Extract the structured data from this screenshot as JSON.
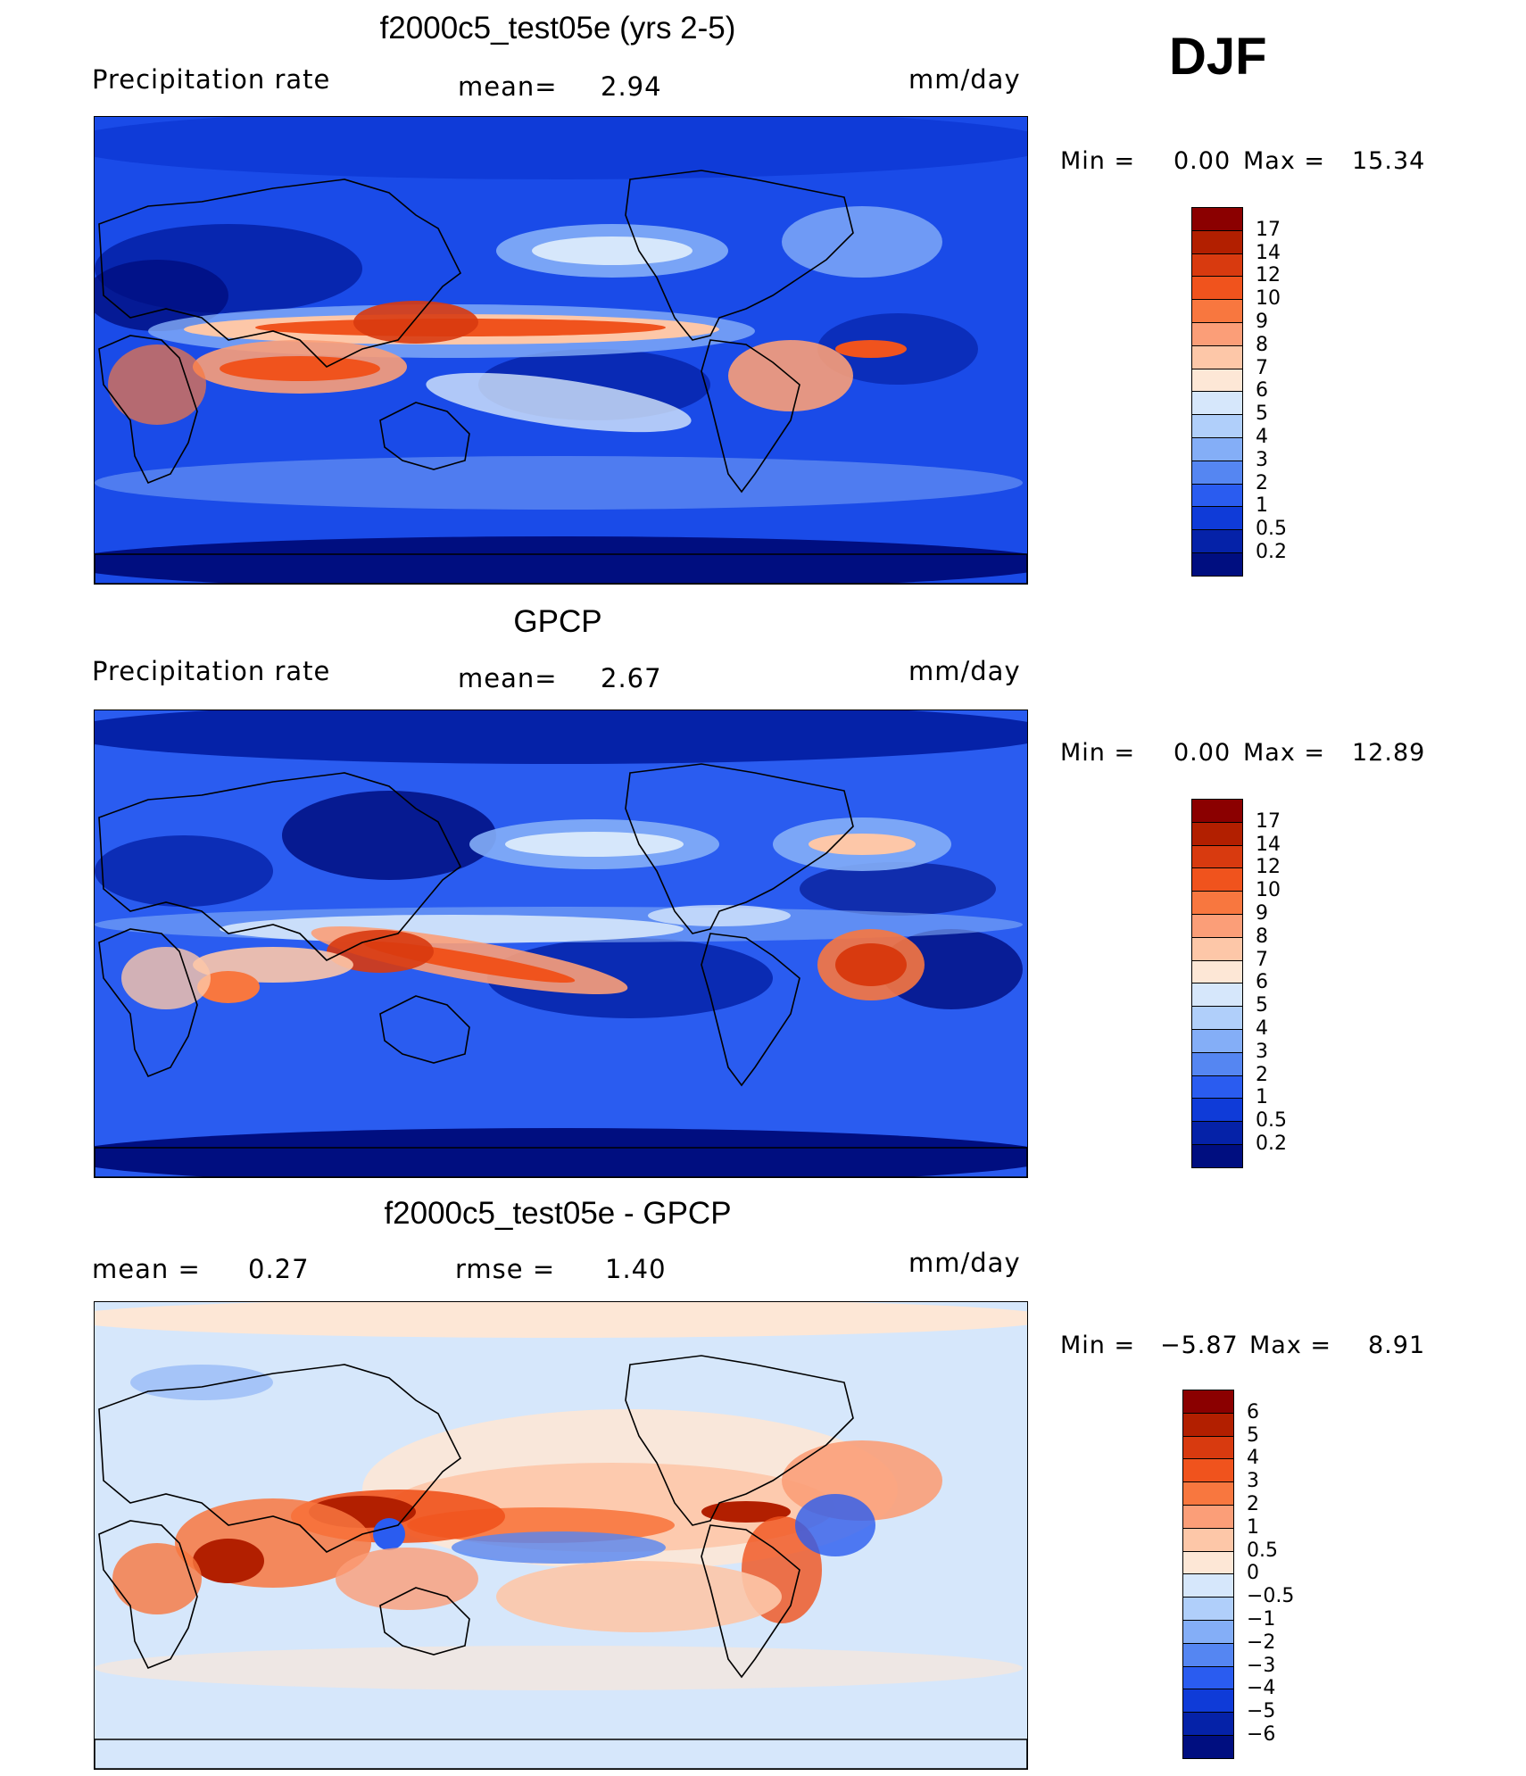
{
  "season": "DJF",
  "panels": [
    {
      "id": "model",
      "title": "f2000c5_test05e (yrs 2-5)",
      "left_label": "Precipitation rate",
      "mid_label": "mean=",
      "mid_value": "2.94",
      "units": "mm/day",
      "min_label": "Min =",
      "min_value": "0.00",
      "max_label": "Max =",
      "max_value": "15.34"
    },
    {
      "id": "obs",
      "title": "GPCP",
      "left_label": "Precipitation rate",
      "mid_label": "mean=",
      "mid_value": "2.67",
      "units": "mm/day",
      "min_label": "Min =",
      "min_value": "0.00",
      "max_label": "Max =",
      "max_value": "12.89"
    },
    {
      "id": "diff",
      "title": "f2000c5_test05e - GPCP",
      "left_label": "mean =",
      "left_value": "0.27",
      "mid_label": "rmse =",
      "mid_value": "1.40",
      "units": "mm/day",
      "min_label": "Min =",
      "min_value": "−5.87",
      "max_label": "Max =",
      "max_value": "8.91"
    }
  ],
  "chart_data": [
    {
      "type": "heatmap",
      "title": "f2000c5_test05e (yrs 2-5)",
      "variable": "Precipitation rate",
      "units": "mm/day",
      "mean": 2.94,
      "min": 0.0,
      "max": 15.34,
      "colorbar_levels": [
        "17",
        "14",
        "12",
        "10",
        "9",
        "8",
        "7",
        "6",
        "5",
        "4",
        "3",
        "2",
        "1",
        "0.5",
        "0.2"
      ],
      "colorbar_colors": [
        "#8b0000",
        "#b21f00",
        "#d83a0f",
        "#f0531d",
        "#f8773f",
        "#fb9e78",
        "#fdc7a8",
        "#fde7d6",
        "#d6e7fb",
        "#b0cffa",
        "#84aef7",
        "#5586f2",
        "#2a5cf0",
        "#0f3bd8",
        "#0522a8",
        "#000e80"
      ]
    },
    {
      "type": "heatmap",
      "title": "GPCP",
      "variable": "Precipitation rate",
      "units": "mm/day",
      "mean": 2.67,
      "min": 0.0,
      "max": 12.89,
      "colorbar_levels": [
        "17",
        "14",
        "12",
        "10",
        "9",
        "8",
        "7",
        "6",
        "5",
        "4",
        "3",
        "2",
        "1",
        "0.5",
        "0.2"
      ],
      "colorbar_colors": [
        "#8b0000",
        "#b21f00",
        "#d83a0f",
        "#f0531d",
        "#f8773f",
        "#fb9e78",
        "#fdc7a8",
        "#fde7d6",
        "#d6e7fb",
        "#b0cffa",
        "#84aef7",
        "#5586f2",
        "#2a5cf0",
        "#0f3bd8",
        "#0522a8",
        "#000e80"
      ]
    },
    {
      "type": "heatmap",
      "title": "f2000c5_test05e - GPCP",
      "units": "mm/day",
      "mean": 0.27,
      "rmse": 1.4,
      "min": -5.87,
      "max": 8.91,
      "colorbar_levels": [
        "6",
        "5",
        "4",
        "3",
        "2",
        "1",
        "0.5",
        "0",
        "−0.5",
        "−1",
        "−2",
        "−3",
        "−4",
        "−5",
        "−6"
      ],
      "colorbar_colors": [
        "#8b0000",
        "#b21f00",
        "#d83a0f",
        "#f0531d",
        "#f8773f",
        "#fb9e78",
        "#fdc7a8",
        "#fde7d6",
        "#d6e7fb",
        "#b0cffa",
        "#84aef7",
        "#5586f2",
        "#2a5cf0",
        "#0f3bd8",
        "#0522a8",
        "#000e80"
      ]
    }
  ]
}
